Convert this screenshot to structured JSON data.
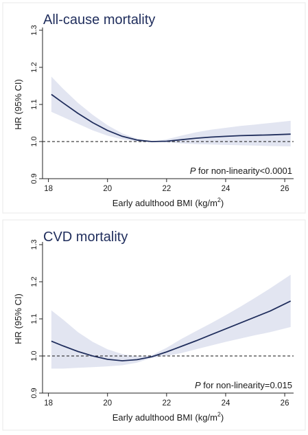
{
  "chart_data": [
    {
      "type": "line",
      "title": "All-cause mortality",
      "xlabel": "Early adulthood BMI (kg/m",
      "xlabel_sup": "2",
      "xlabel_close": ")",
      "ylabel": "HR (95% CI)",
      "xlim": [
        17.8,
        26.3
      ],
      "ylim": [
        0.9,
        1.3
      ],
      "x_ticks": [
        18,
        20,
        22,
        24,
        26
      ],
      "y_ticks": [
        0.9,
        1.0,
        1.1,
        1.2,
        1.3
      ],
      "y_tick_labels": [
        "0.9",
        "1.0",
        "1.1",
        "1.2",
        "1.3"
      ],
      "reference_line": 1.0,
      "annotation_italic": "P",
      "annotation_text": " for non-linearity<0.0001",
      "series": [
        {
          "x": [
            18.1,
            18.5,
            19.0,
            19.5,
            20.0,
            20.5,
            21.0,
            21.5,
            22.0,
            22.5,
            23.0,
            23.5,
            24.0,
            24.5,
            25.0,
            25.5,
            26.2
          ],
          "y": [
            1.127,
            1.104,
            1.076,
            1.051,
            1.03,
            1.014,
            1.004,
            1.0,
            1.001,
            1.005,
            1.009,
            1.012,
            1.014,
            1.016,
            1.017,
            1.018,
            1.02
          ],
          "lower": [
            1.08,
            1.066,
            1.048,
            1.03,
            1.016,
            1.006,
            1.0,
            1.0,
            0.998,
            0.995,
            0.993,
            0.992,
            0.991,
            0.99,
            0.989,
            0.988,
            0.987
          ],
          "upper": [
            1.175,
            1.142,
            1.104,
            1.072,
            1.044,
            1.022,
            1.008,
            1.0,
            1.006,
            1.016,
            1.025,
            1.032,
            1.037,
            1.042,
            1.046,
            1.05,
            1.056
          ]
        }
      ]
    },
    {
      "type": "line",
      "title": "CVD mortality",
      "xlabel": "Early adulthood BMI (kg/m",
      "xlabel_sup": "2",
      "xlabel_close": ")",
      "ylabel": "HR (95% CI)",
      "xlim": [
        17.8,
        26.3
      ],
      "ylim": [
        0.9,
        1.3
      ],
      "x_ticks": [
        18,
        20,
        22,
        24,
        26
      ],
      "y_ticks": [
        0.9,
        1.0,
        1.1,
        1.2,
        1.3
      ],
      "y_tick_labels": [
        "0.9",
        "1.0",
        "1.1",
        "1.2",
        "1.3"
      ],
      "reference_line": 1.0,
      "annotation_italic": "P",
      "annotation_text": " for non-linearity=0.015",
      "series": [
        {
          "x": [
            18.1,
            18.5,
            19.0,
            19.5,
            20.0,
            20.5,
            21.0,
            21.5,
            22.0,
            22.5,
            23.0,
            23.5,
            24.0,
            24.5,
            25.0,
            25.5,
            26.2
          ],
          "y": [
            1.04,
            1.027,
            1.012,
            1.0,
            0.991,
            0.987,
            0.99,
            0.998,
            1.011,
            1.026,
            1.041,
            1.057,
            1.073,
            1.089,
            1.105,
            1.121,
            1.148
          ],
          "lower": [
            0.966,
            0.966,
            0.968,
            0.97,
            0.972,
            0.975,
            0.982,
            0.995,
            1.0,
            1.008,
            1.018,
            1.028,
            1.038,
            1.047,
            1.056,
            1.064,
            1.078
          ],
          "upper": [
            1.123,
            1.098,
            1.064,
            1.038,
            1.018,
            1.005,
            0.999,
            1.002,
            1.022,
            1.046,
            1.067,
            1.088,
            1.11,
            1.133,
            1.157,
            1.182,
            1.219
          ]
        }
      ]
    }
  ],
  "colors": {
    "line": "#1f2d5c",
    "band": "#e2e5f1",
    "axis": "#222222",
    "panel_border": "#e8e8e8",
    "text": "#1a1a1a",
    "title": "#1f2d5c"
  }
}
